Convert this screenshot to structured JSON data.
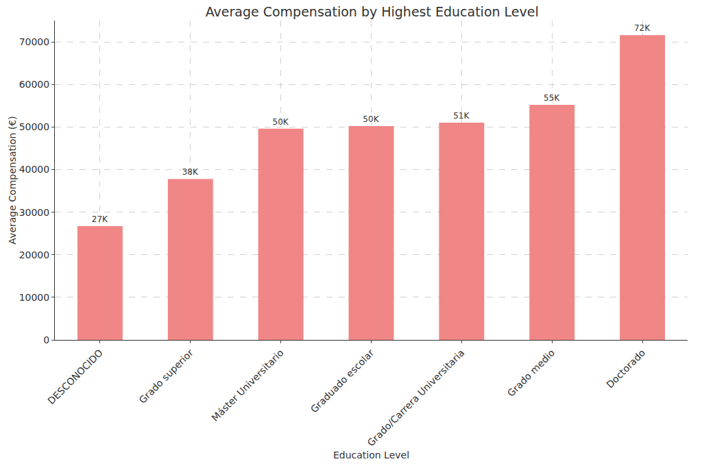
{
  "chart_data": {
    "type": "bar",
    "title": "Average Compensation by Highest Education Level",
    "x_label": "Education Level",
    "y_label": "Average Compensation (€)",
    "categories": [
      "DESCONOCIDO",
      "Grado superior",
      "Máster Universitario",
      "Graduado escolar",
      "Grado/Carrera Universitaria",
      "Grado medio",
      "Doctorado"
    ],
    "values": [
      26700,
      37800,
      49600,
      50200,
      51000,
      55200,
      71600
    ],
    "value_labels": [
      "27K",
      "38K",
      "50K",
      "50K",
      "51K",
      "55K",
      "72K"
    ],
    "data_labels": true,
    "color": "#f08080",
    "ylim": [
      0,
      75000
    ],
    "yticks": [
      0,
      10000,
      20000,
      30000,
      40000,
      50000,
      60000,
      70000
    ],
    "grid": true
  }
}
